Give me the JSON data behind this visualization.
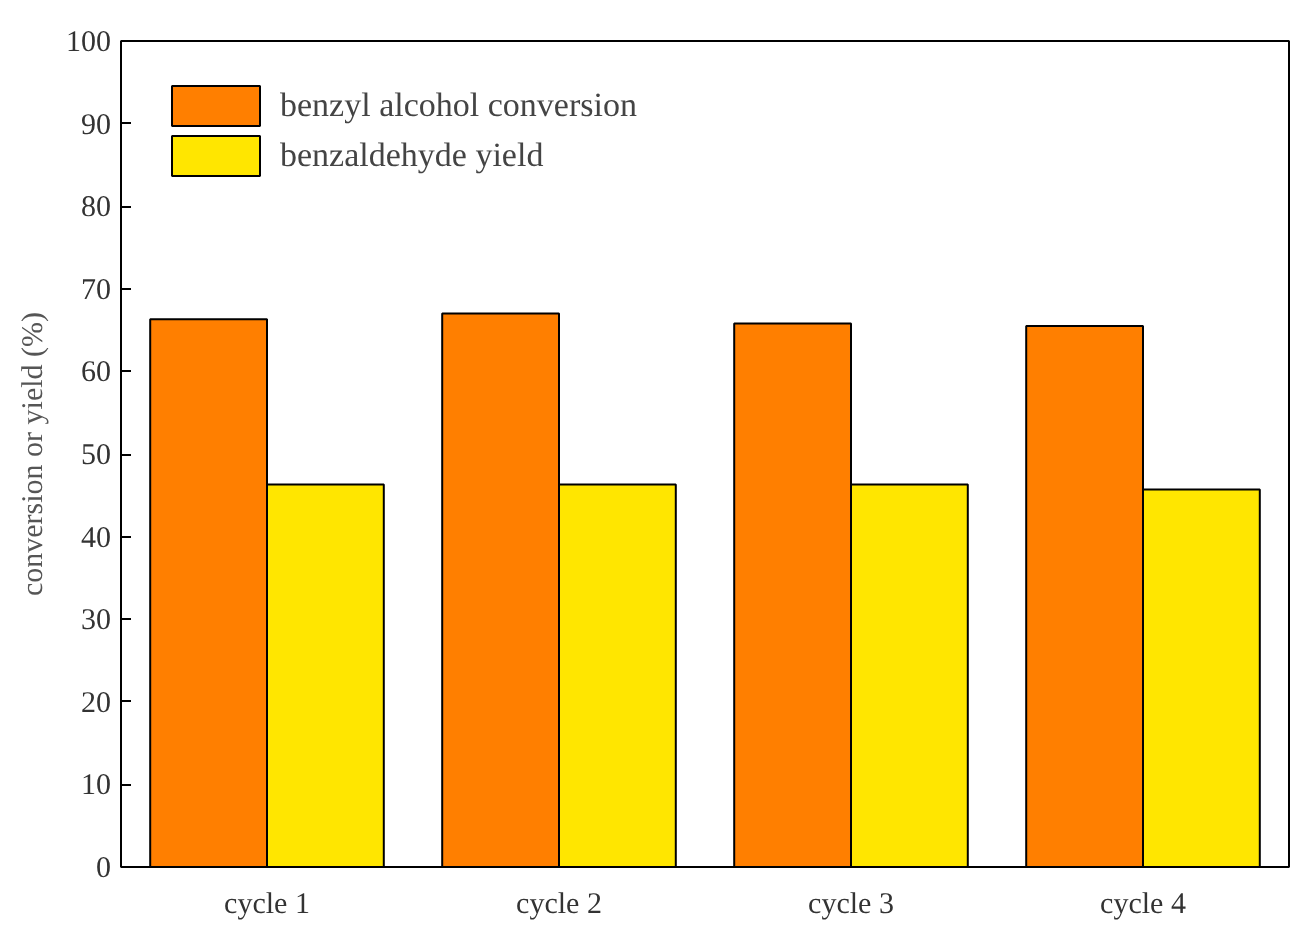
{
  "chart_data": {
    "type": "bar",
    "ylabel": "conversion or yield (%)",
    "categories": [
      "cycle 1",
      "cycle 2",
      "cycle 3",
      "cycle 4"
    ],
    "series": [
      {
        "name": "benzyl alcohol conversion",
        "color": "#ff7f00",
        "values": [
          66.3,
          67.0,
          65.8,
          65.5
        ]
      },
      {
        "name": "benzaldehyde yield",
        "color": "#ffe600",
        "values": [
          46.3,
          46.3,
          46.3,
          45.7
        ]
      }
    ],
    "ylim": [
      0,
      100
    ],
    "yticks": [
      0,
      10,
      20,
      30,
      40,
      50,
      60,
      70,
      80,
      90,
      100
    ],
    "grid": false,
    "legend": "top left"
  }
}
